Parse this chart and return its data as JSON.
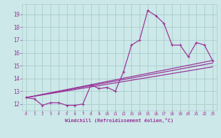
{
  "xlabel": "Windchill (Refroidissement éolien,°C)",
  "bg_color": "#cce8e8",
  "grid_color": "#aacccc",
  "line_color": "#993399",
  "xlim": [
    -0.5,
    23.5
  ],
  "ylim": [
    11.5,
    19.8
  ],
  "xticks": [
    0,
    1,
    2,
    3,
    4,
    5,
    6,
    7,
    8,
    9,
    10,
    11,
    12,
    13,
    14,
    15,
    16,
    17,
    18,
    19,
    20,
    21,
    22,
    23
  ],
  "yticks": [
    12,
    13,
    14,
    15,
    16,
    17,
    18,
    19
  ],
  "series1_x": [
    0,
    1,
    2,
    3,
    4,
    5,
    6,
    7,
    8,
    9,
    10,
    11,
    12,
    13,
    14,
    15,
    16,
    17,
    18,
    19,
    20,
    21,
    22,
    23
  ],
  "series1_y": [
    12.5,
    12.4,
    11.9,
    12.1,
    12.1,
    11.9,
    11.9,
    12.0,
    13.5,
    13.2,
    13.3,
    13.0,
    14.5,
    16.6,
    17.0,
    19.3,
    18.9,
    18.3,
    16.6,
    16.6,
    15.7,
    16.8,
    16.6,
    15.4
  ],
  "series2_x": [
    0,
    23
  ],
  "series2_y": [
    12.5,
    15.4
  ],
  "series3_x": [
    0,
    23
  ],
  "series3_y": [
    12.5,
    15.2
  ],
  "series4_x": [
    0,
    23
  ],
  "series4_y": [
    12.5,
    14.9
  ]
}
